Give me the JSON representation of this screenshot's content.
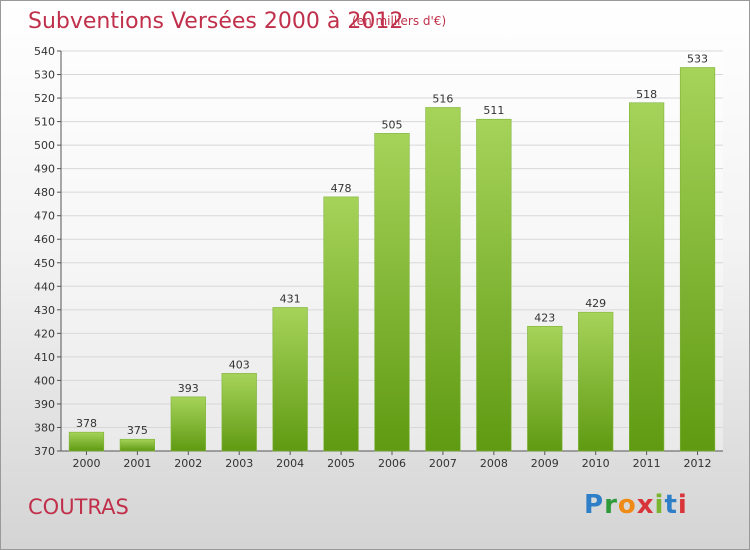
{
  "header": {
    "title": "Subventions Versées 2000 à 2012",
    "unit": "(en milliers d'€)"
  },
  "footer": {
    "city": "COUTRAS",
    "logo_text": "Proxiti"
  },
  "colors": {
    "title": "#c0304b",
    "bar_light": "#a6d35a",
    "bar_dark": "#5f9a12",
    "grid": "#d8d8d8"
  },
  "chart_data": {
    "type": "bar",
    "categories": [
      "2000",
      "2001",
      "2002",
      "2003",
      "2004",
      "2005",
      "2006",
      "2007",
      "2008",
      "2009",
      "2010",
      "2011",
      "2012"
    ],
    "values": [
      378,
      375,
      393,
      403,
      431,
      478,
      505,
      516,
      511,
      423,
      429,
      518,
      533
    ],
    "ylim": [
      370,
      540
    ],
    "ytick_step": 10,
    "grid": true,
    "data_labels": true
  }
}
